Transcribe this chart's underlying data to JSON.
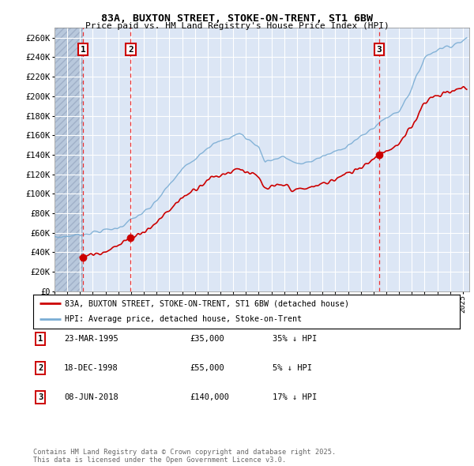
{
  "title_line1": "83A, BUXTON STREET, STOKE-ON-TRENT, ST1 6BW",
  "title_line2": "Price paid vs. HM Land Registry's House Price Index (HPI)",
  "xlim_start": 1993.0,
  "xlim_end": 2025.5,
  "ylim_min": 0,
  "ylim_max": 270000,
  "yticks": [
    0,
    20000,
    40000,
    60000,
    80000,
    100000,
    120000,
    140000,
    160000,
    180000,
    200000,
    220000,
    240000,
    260000
  ],
  "ytick_labels": [
    "£0",
    "£20K",
    "£40K",
    "£60K",
    "£80K",
    "£100K",
    "£120K",
    "£140K",
    "£160K",
    "£180K",
    "£200K",
    "£220K",
    "£240K",
    "£260K"
  ],
  "background_color": "#dce6f5",
  "hatched_region_end": 1995.23,
  "hatch_color": "#b8c8dc",
  "grid_color": "#ffffff",
  "sale_dates": [
    1995.23,
    1998.97,
    2018.44
  ],
  "sale_prices": [
    35000,
    55000,
    140000
  ],
  "sale_labels": [
    "1",
    "2",
    "3"
  ],
  "legend_line1": "83A, BUXTON STREET, STOKE-ON-TRENT, ST1 6BW (detached house)",
  "legend_line2": "HPI: Average price, detached house, Stoke-on-Trent",
  "table_entries": [
    {
      "num": "1",
      "date": "23-MAR-1995",
      "price": "£35,000",
      "change": "35% ↓ HPI"
    },
    {
      "num": "2",
      "date": "18-DEC-1998",
      "price": "£55,000",
      "change": "5% ↓ HPI"
    },
    {
      "num": "3",
      "date": "08-JUN-2018",
      "price": "£140,000",
      "change": "17% ↓ HPI"
    }
  ],
  "footer_text": "Contains HM Land Registry data © Crown copyright and database right 2025.\nThis data is licensed under the Open Government Licence v3.0.",
  "red_line_color": "#cc0000",
  "blue_line_color": "#7aadd4",
  "sale_marker_color": "#cc0000",
  "vline_color": "#ee3333"
}
